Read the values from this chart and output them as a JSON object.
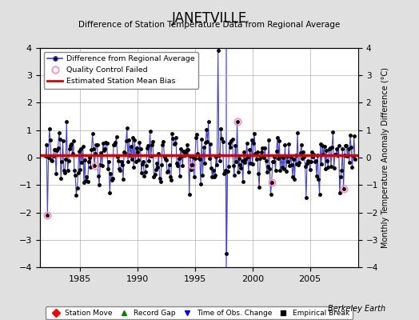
{
  "title": "JANETVILLE",
  "subtitle": "Difference of Station Temperature Data from Regional Average",
  "ylabel_right": "Monthly Temperature Anomaly Difference (°C)",
  "xlim": [
    1981.5,
    2009.2
  ],
  "ylim": [
    -4,
    4
  ],
  "yticks": [
    -4,
    -3,
    -2,
    -1,
    0,
    1,
    2,
    3,
    4
  ],
  "xticks": [
    1985,
    1990,
    1995,
    2000,
    2005
  ],
  "bias_line_y": 0.08,
  "blue_vline_x": 1997.75,
  "background_color": "#e0e0e0",
  "plot_bg_color": "#ffffff",
  "grid_color": "#b0b0b0",
  "line_color": "#4444cc",
  "dot_color": "#000000",
  "bias_color": "#dd0000",
  "vline_color": "#8888ff",
  "qc_color": "#ff88bb",
  "qc_failed_points": [
    [
      1982.17,
      -2.1
    ],
    [
      1986.33,
      -0.3
    ],
    [
      1994.75,
      -0.25
    ],
    [
      1998.67,
      1.3
    ],
    [
      2001.67,
      -0.9
    ],
    [
      2007.92,
      -1.15
    ]
  ],
  "station_attribution": "Berkeley Earth",
  "seed": 12345,
  "data_years_start": 1982,
  "data_years_end": 2008
}
